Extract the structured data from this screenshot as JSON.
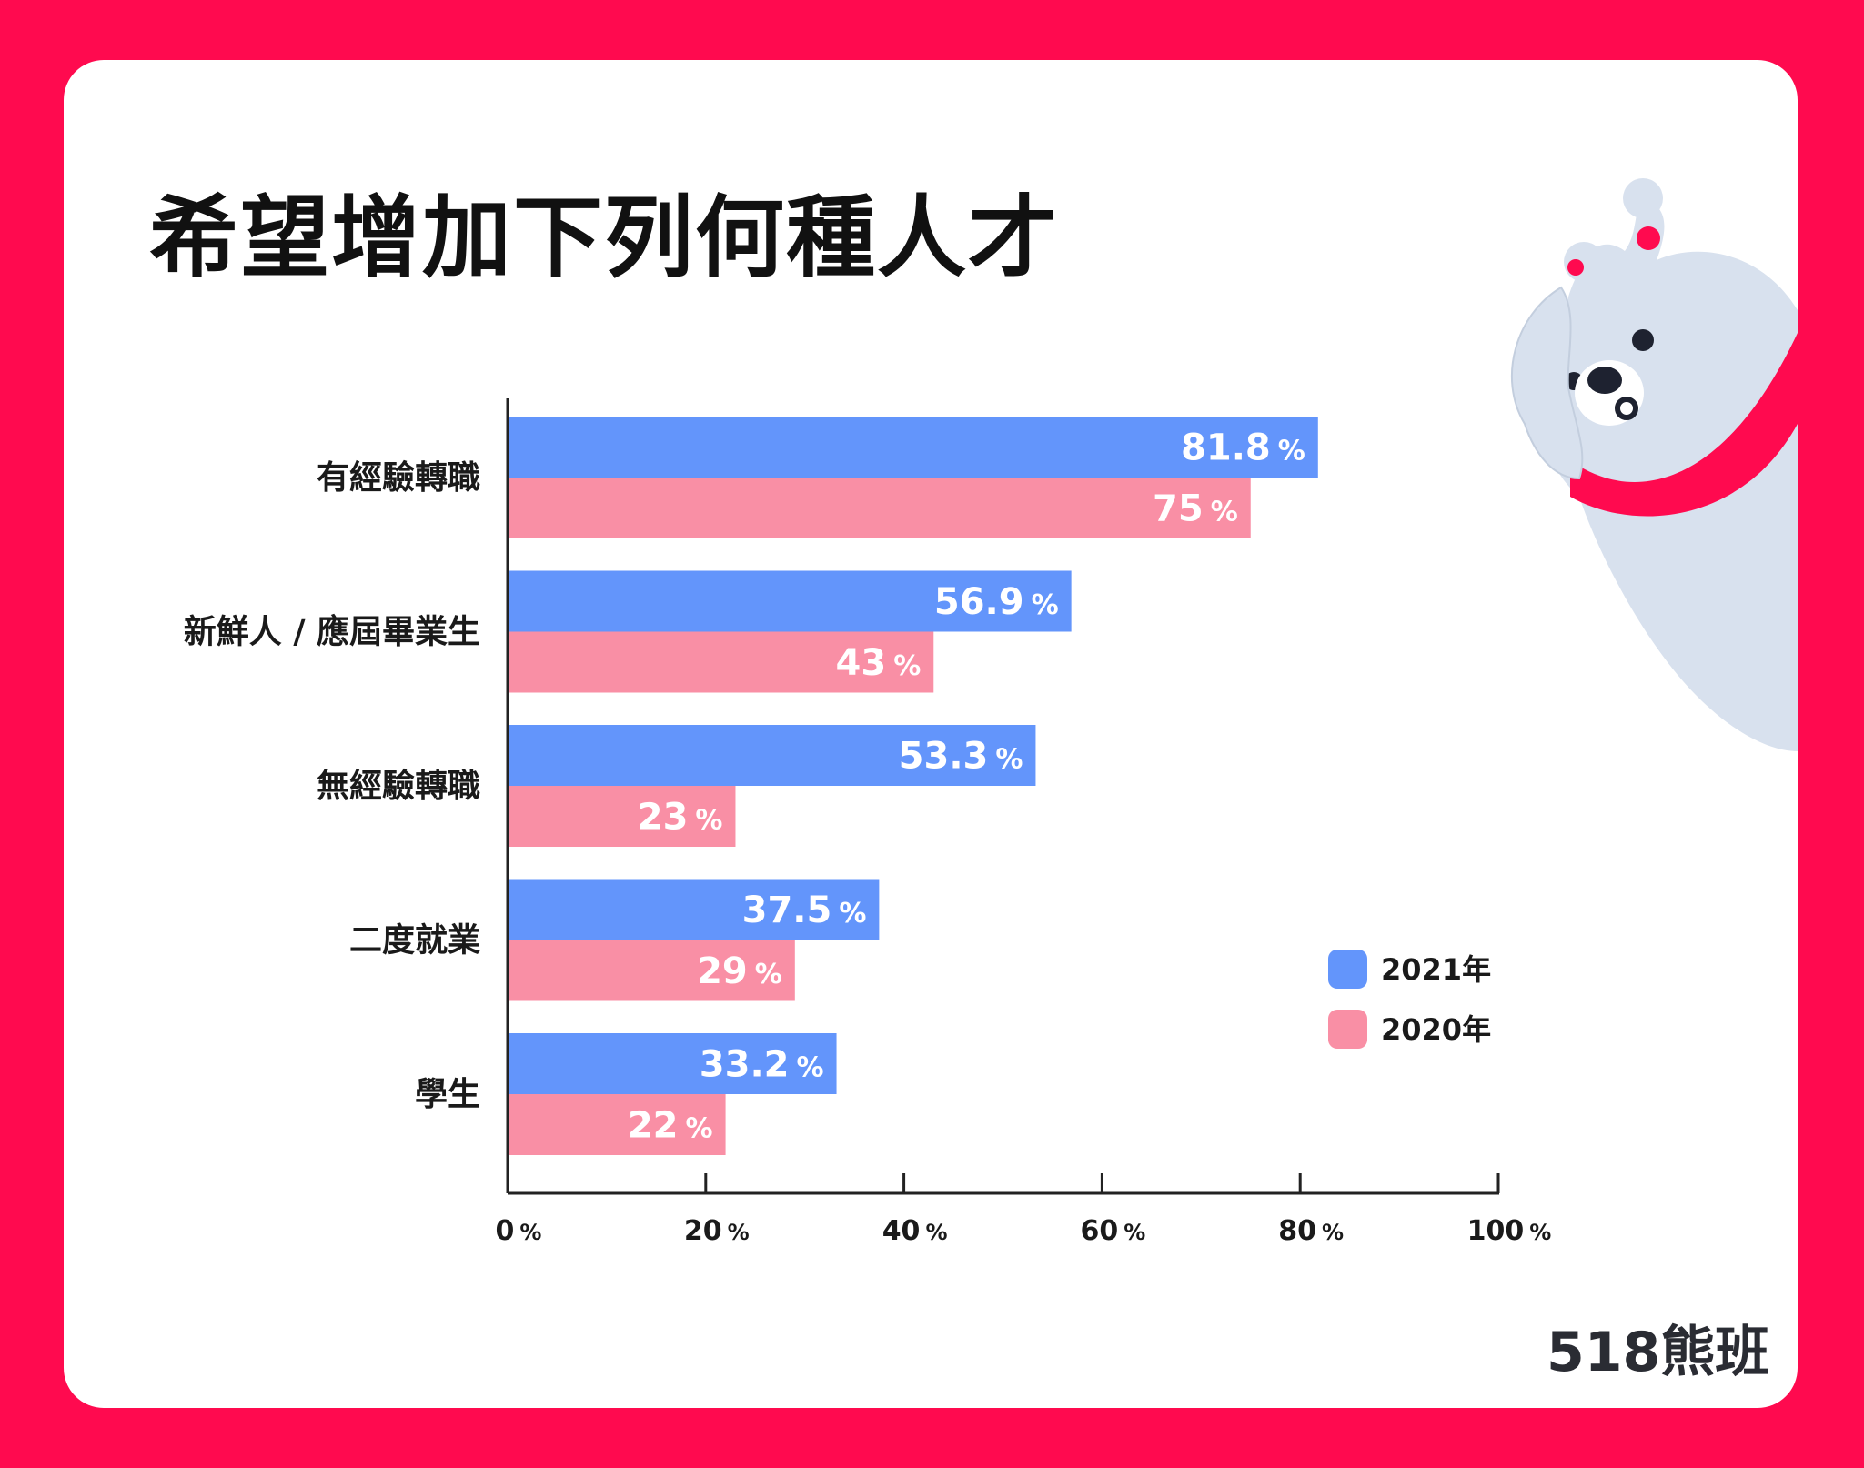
{
  "colors": {
    "frame": "#ff0a4f",
    "series_2021": "#6395fb",
    "series_2020": "#f98fa5"
  },
  "chart_data": {
    "type": "bar",
    "orientation": "horizontal",
    "title": "希望增加下列何種人才",
    "categories": [
      "有經驗轉職",
      "新鮮人 / 應屆畢業生",
      "無經驗轉職",
      "二度就業",
      "學生"
    ],
    "series": [
      {
        "name": "2021年",
        "values": [
          81.8,
          56.9,
          53.3,
          37.5,
          33.2
        ]
      },
      {
        "name": "2020年",
        "values": [
          75,
          43,
          23,
          29,
          22
        ]
      }
    ],
    "value_unit": "%",
    "xlim": [
      0,
      100
    ],
    "xticks": [
      0,
      20,
      40,
      60,
      80,
      100
    ],
    "grid": false,
    "legend_position": "bottom-right"
  },
  "brand": {
    "logo_text": "518熊班"
  }
}
